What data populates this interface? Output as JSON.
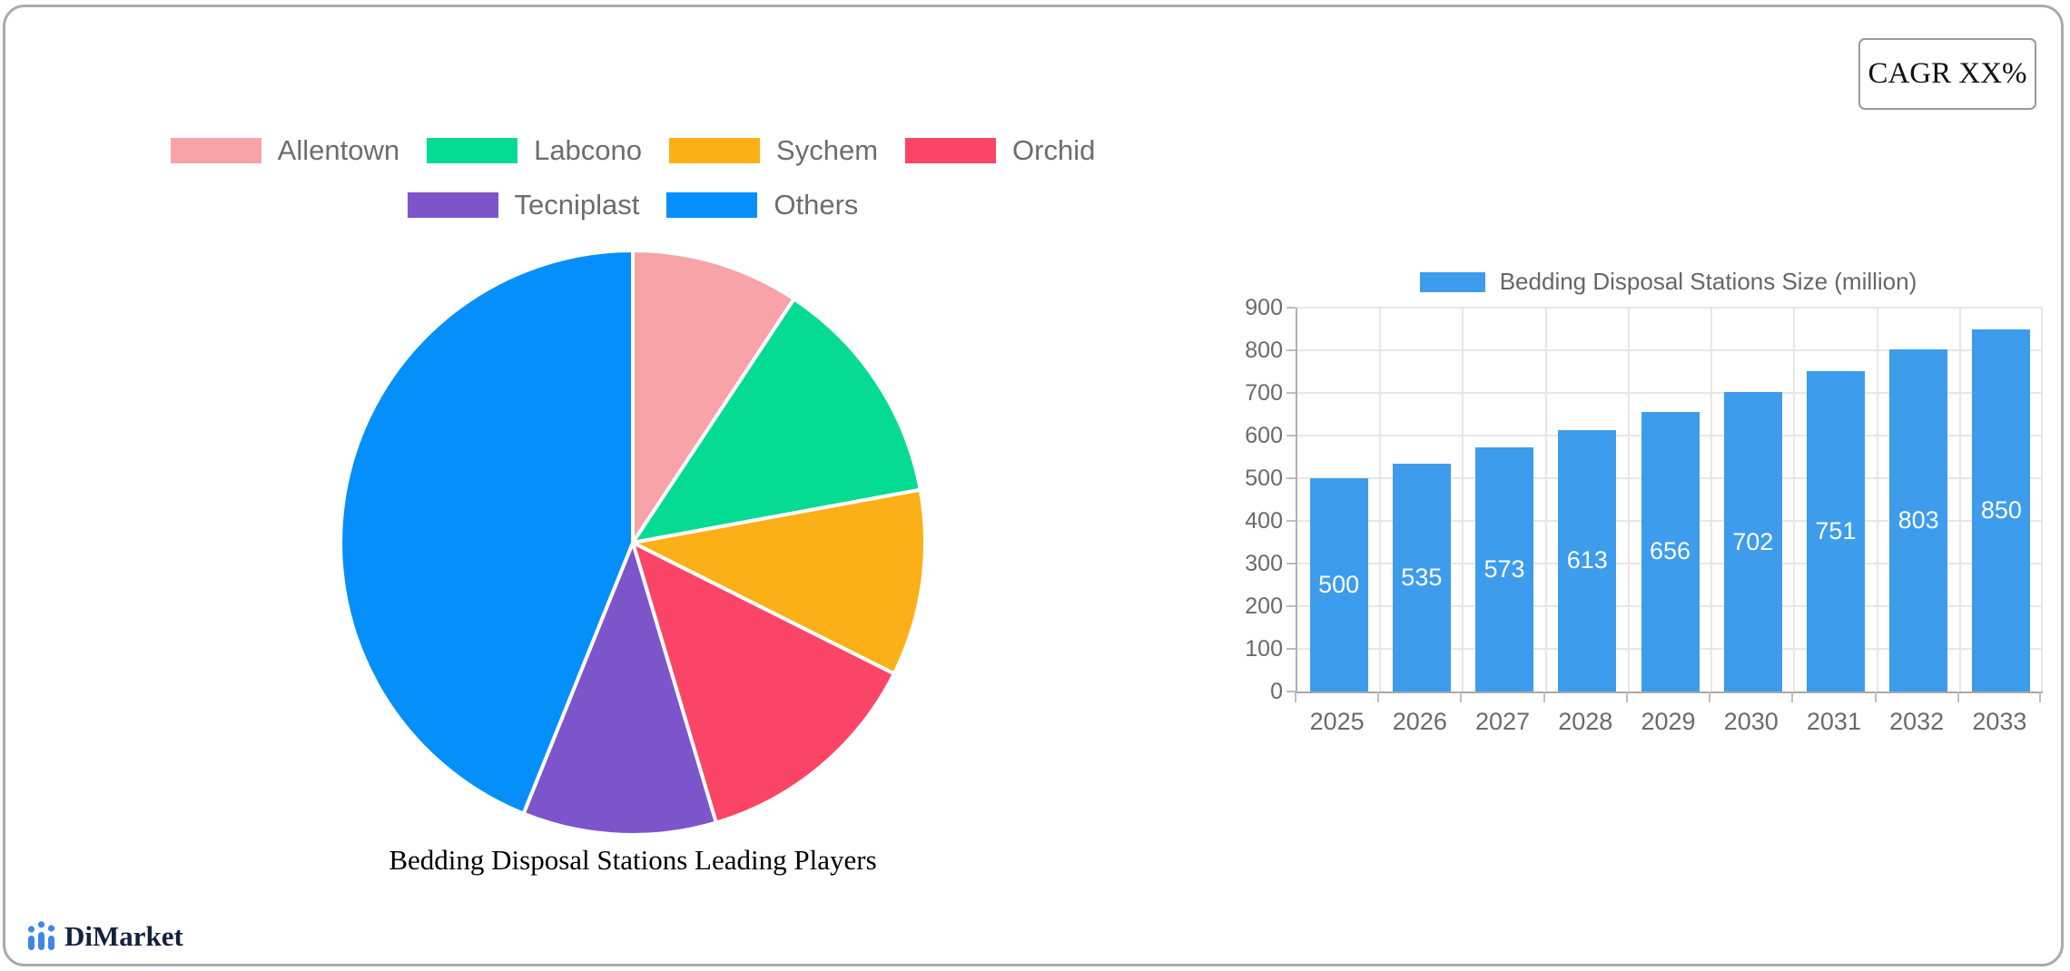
{
  "card": {
    "cagr_label": "CAGR XX%"
  },
  "branding": {
    "name": "DiMarket",
    "logo_icon": "mini-bar-chart-icon",
    "logo_color": "#3f86e8"
  },
  "chart_data": [
    {
      "type": "pie",
      "title": "Bedding Disposal Stations Leading Players",
      "labels": [
        "Allentown",
        "Labcono",
        "Sychem",
        "Orchid",
        "Tecniplast",
        "Others"
      ],
      "values": [
        9.3,
        12.8,
        10.3,
        13.0,
        10.7,
        43.9
      ],
      "unit": "percent (estimated from slice angles)",
      "colors": [
        "#f7a3a7",
        "#06db94",
        "#fcb017",
        "#fb4566",
        "#7d55cb",
        "#058ffa"
      ],
      "legend_position": "top",
      "legend_rows": [
        4,
        2
      ],
      "start_angle_deg": 0,
      "direction": "clockwise"
    },
    {
      "type": "bar",
      "series_name": "Bedding Disposal Stations Size (million)",
      "categories": [
        "2025",
        "2026",
        "2027",
        "2028",
        "2029",
        "2030",
        "2031",
        "2032",
        "2033"
      ],
      "values": [
        500,
        535,
        573,
        613,
        656,
        702,
        751,
        803,
        850
      ],
      "bar_color": "#3e9cec",
      "value_label_color": "#ffffff",
      "ylim": [
        0,
        900
      ],
      "ytick_step": 100,
      "grid": true,
      "legend_position": "top",
      "xlabel": "",
      "ylabel": ""
    }
  ]
}
